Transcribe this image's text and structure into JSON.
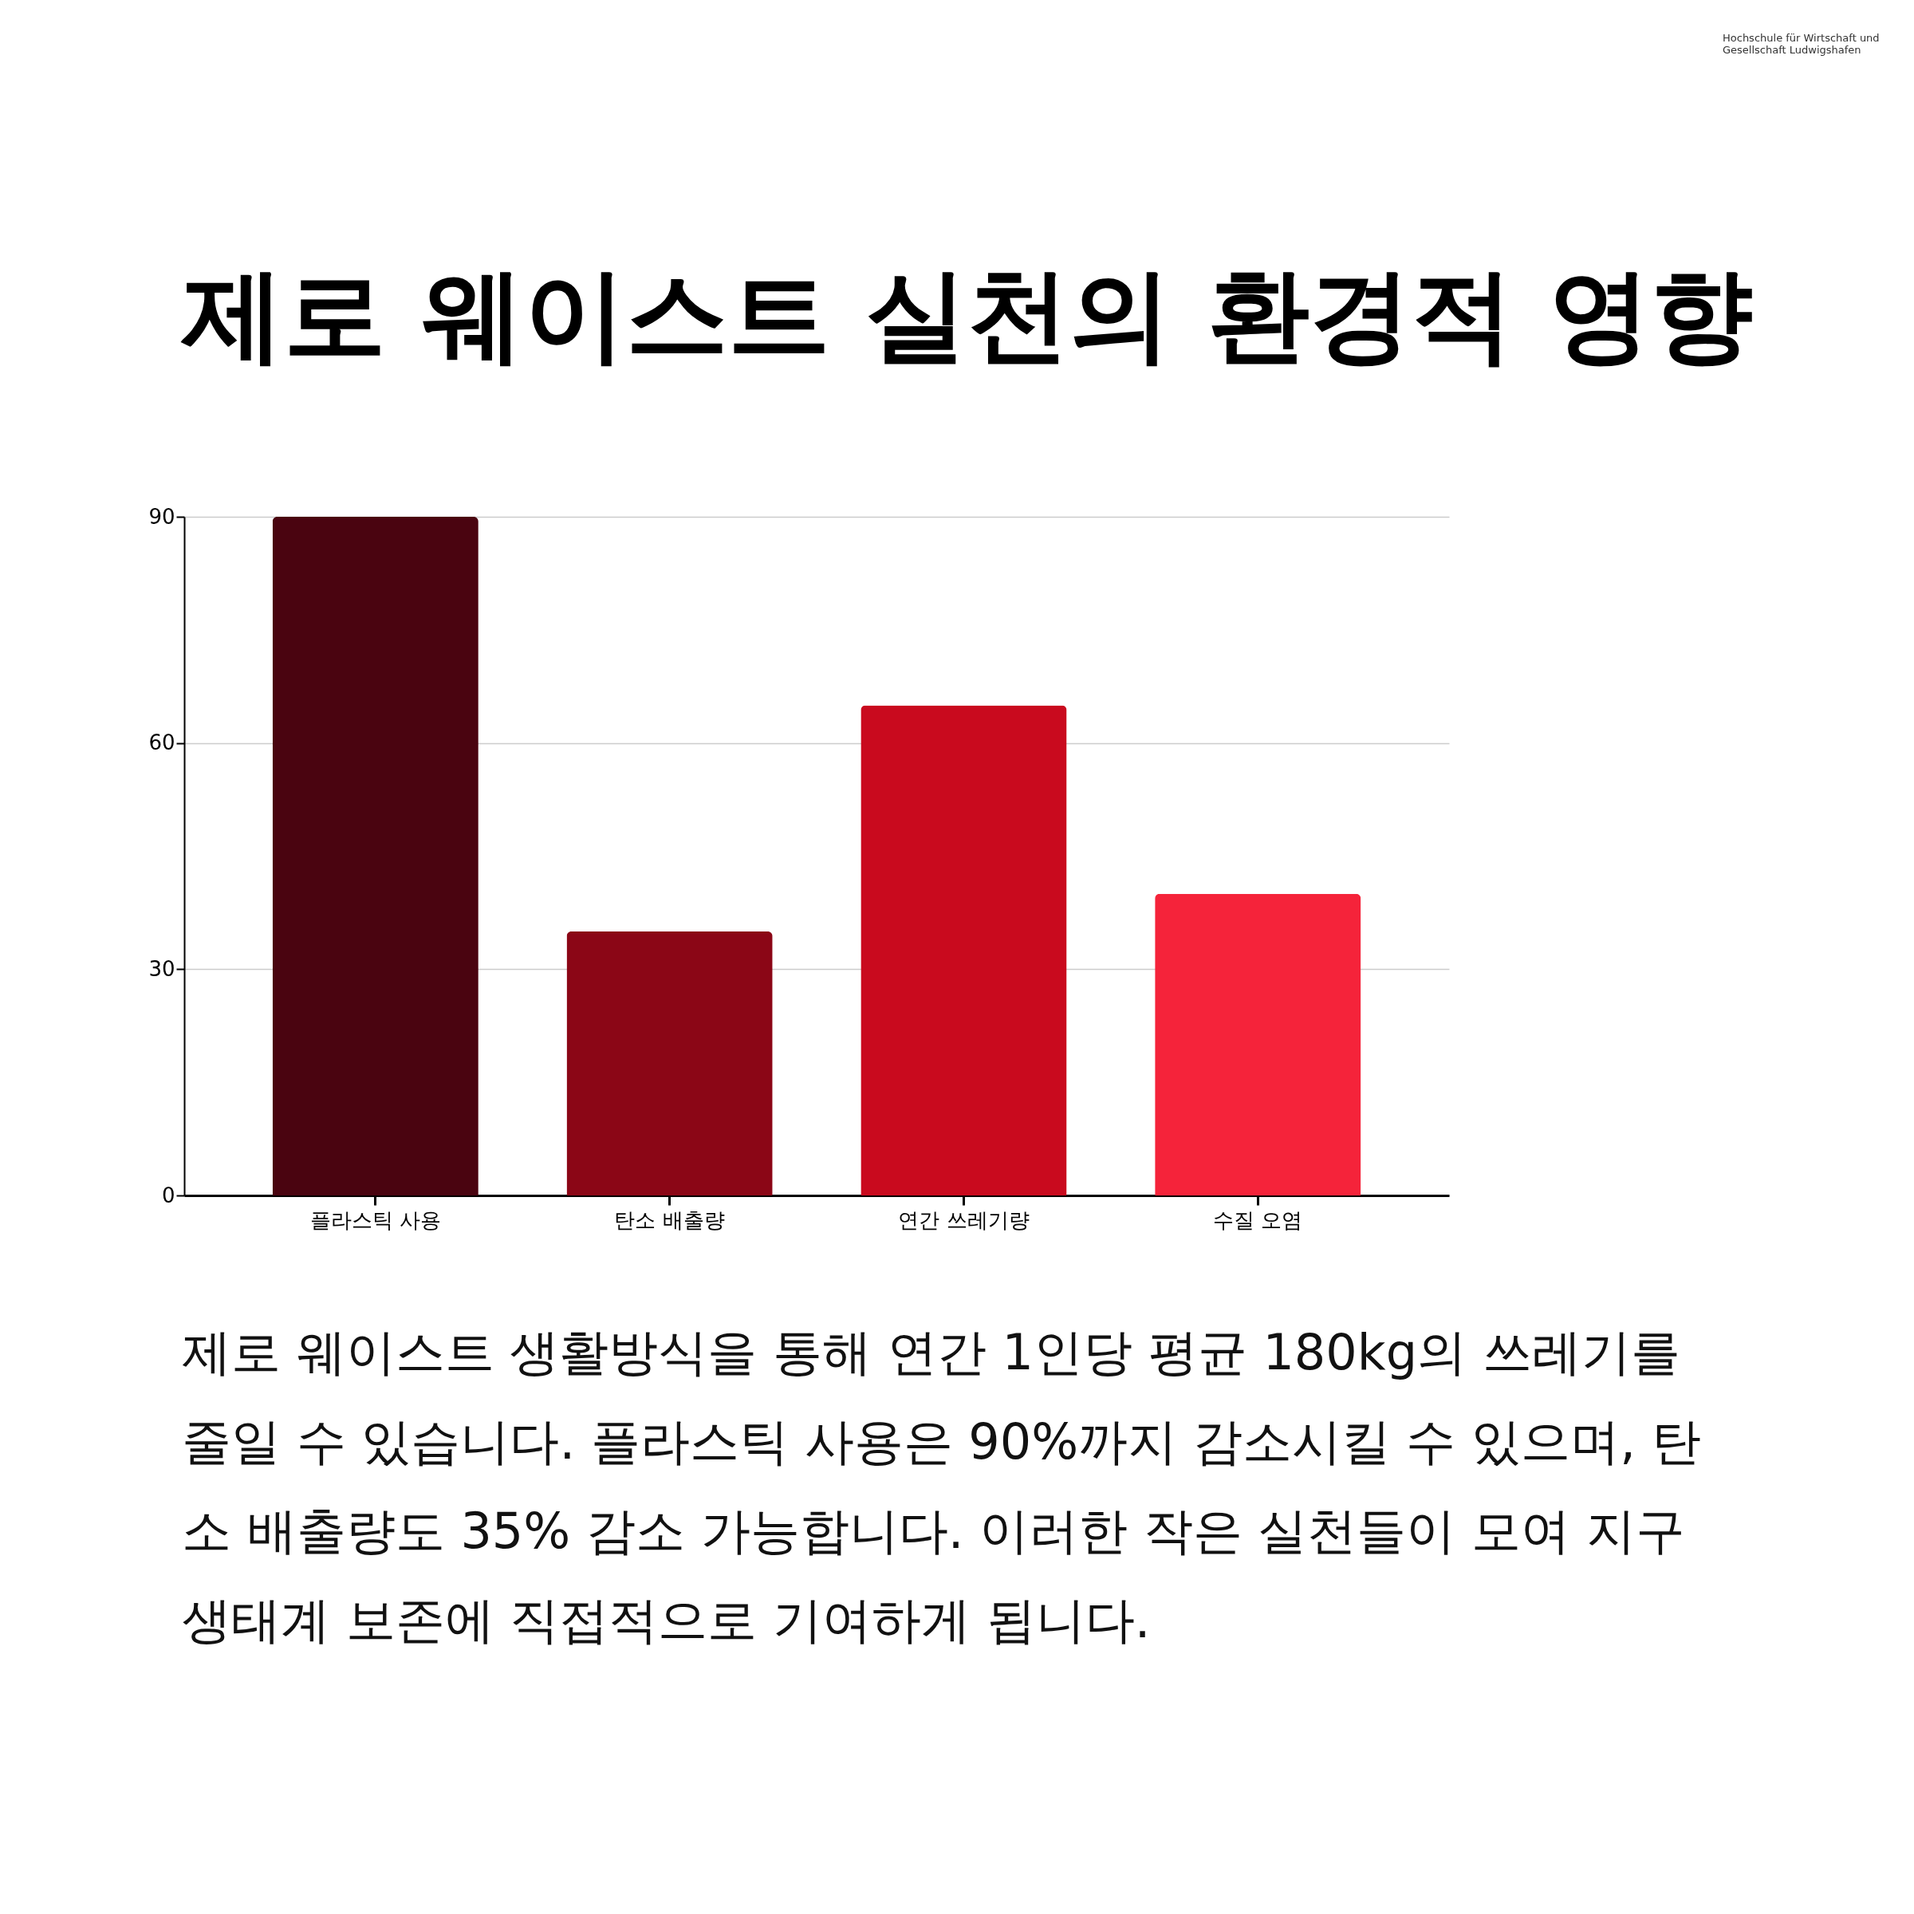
{
  "chart_data": {
    "type": "bar",
    "title": "제로 웨이스트 실천의 환경적 영향",
    "categories": [
      "플라스틱 사용",
      "탄소 배출량",
      "연간 쓰레기량",
      "수질 오염"
    ],
    "values": [
      90,
      35,
      65,
      40
    ],
    "colors": [
      "#4a0410",
      "#8b0616",
      "#c90a1e",
      "#f5233a"
    ],
    "ylim": [
      0,
      90
    ],
    "yticks": [
      0,
      30,
      60,
      90
    ],
    "grid": "y",
    "annotations": [
      "Hochschule für Wirtschaft und Gesellschaft Ludwigshafen",
      "제로 웨이스트 생활방식을 통해 연간 1인당 평균 180kg의 쓰레기를 줄일 수 있습니다. 플라스틱 사용은 90%까지 감소시킬 수 있으며, 탄소 배출량도 35% 감소 가능합니다. 이러한 작은 실천들이 모여 지구 생태계 보존에 직접적으로 기여하게 됩니다."
    ]
  }
}
